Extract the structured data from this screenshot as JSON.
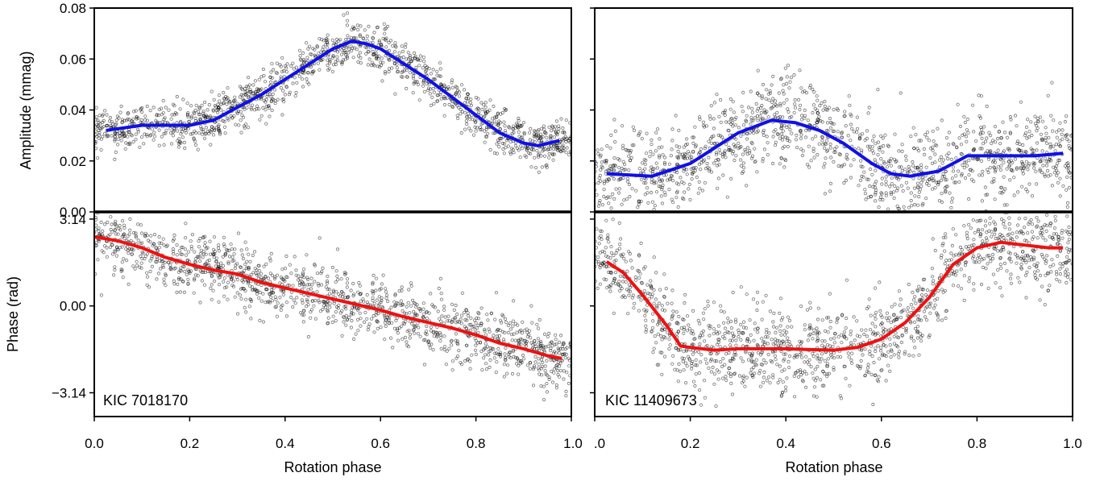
{
  "chart_data": [
    {
      "type": "scatter",
      "panel": "left",
      "object": "KIC 7018170",
      "xlabel": "Rotation phase",
      "xlim": [
        0.0,
        1.0
      ],
      "xticks": [
        "0.0",
        "0.2",
        "0.4",
        "0.6",
        "0.8",
        "1.0"
      ],
      "amplitude": {
        "ylabel": "Amplitude (mmag)",
        "ylim": [
          0.0,
          0.08
        ],
        "yticks": [
          "0.00",
          "0.02",
          "0.04",
          "0.06",
          "0.08"
        ],
        "trend_color": "#1010e8",
        "trend": {
          "x": [
            0.025,
            0.1,
            0.2,
            0.25,
            0.3,
            0.35,
            0.4,
            0.45,
            0.5,
            0.54,
            0.57,
            0.6,
            0.65,
            0.7,
            0.75,
            0.8,
            0.85,
            0.9,
            0.93,
            0.975
          ],
          "y": [
            0.032,
            0.034,
            0.034,
            0.036,
            0.041,
            0.046,
            0.052,
            0.058,
            0.064,
            0.067,
            0.066,
            0.064,
            0.058,
            0.052,
            0.045,
            0.038,
            0.031,
            0.027,
            0.026,
            0.028
          ]
        }
      },
      "phase": {
        "ylabel": "Phase (rad)",
        "ylim": [
          -4.0,
          3.4
        ],
        "yticks": [
          "3.14",
          "0.00",
          "−3.14"
        ],
        "ytick_values": [
          3.14,
          0.0,
          -3.14
        ],
        "trend_color": "#f01010",
        "trend": {
          "x": [
            0.0,
            0.05,
            0.1,
            0.15,
            0.2,
            0.25,
            0.3,
            0.35,
            0.4,
            0.45,
            0.5,
            0.55,
            0.6,
            0.65,
            0.7,
            0.75,
            0.8,
            0.85,
            0.9,
            0.95,
            0.98
          ],
          "y": [
            2.5,
            2.35,
            2.1,
            1.75,
            1.5,
            1.3,
            1.15,
            0.85,
            0.65,
            0.45,
            0.25,
            0.05,
            -0.15,
            -0.4,
            -0.6,
            -0.8,
            -1.05,
            -1.35,
            -1.55,
            -1.8,
            -1.9
          ]
        }
      }
    },
    {
      "type": "scatter",
      "panel": "right",
      "object": "KIC 11409673",
      "xlabel": "Rotation phase",
      "xlim": [
        0.0,
        1.0
      ],
      "xticks": [
        "0.2",
        "0.4",
        "0.6",
        "0.8",
        "1.0"
      ],
      "amplitude": {
        "ylim": [
          0.0,
          0.08
        ],
        "trend_color": "#1010e8",
        "trend": {
          "x": [
            0.025,
            0.12,
            0.2,
            0.25,
            0.3,
            0.37,
            0.42,
            0.47,
            0.52,
            0.58,
            0.62,
            0.66,
            0.72,
            0.78,
            0.85,
            0.92,
            0.98
          ],
          "y": [
            0.015,
            0.014,
            0.019,
            0.025,
            0.031,
            0.036,
            0.035,
            0.032,
            0.027,
            0.019,
            0.015,
            0.014,
            0.016,
            0.022,
            0.022,
            0.022,
            0.023
          ]
        }
      },
      "phase": {
        "ylim": [
          -4.0,
          3.4
        ],
        "trend_color": "#f01010",
        "trend": {
          "x": [
            0.025,
            0.06,
            0.1,
            0.15,
            0.18,
            0.2,
            0.25,
            0.3,
            0.35,
            0.4,
            0.45,
            0.5,
            0.55,
            0.6,
            0.65,
            0.7,
            0.75,
            0.8,
            0.85,
            0.9,
            0.95,
            0.98
          ],
          "y": [
            1.6,
            1.2,
            0.4,
            -0.7,
            -1.45,
            -1.5,
            -1.6,
            -1.55,
            -1.55,
            -1.55,
            -1.58,
            -1.6,
            -1.5,
            -1.2,
            -0.6,
            0.3,
            1.5,
            2.1,
            2.3,
            2.2,
            2.1,
            2.1
          ]
        }
      }
    }
  ]
}
